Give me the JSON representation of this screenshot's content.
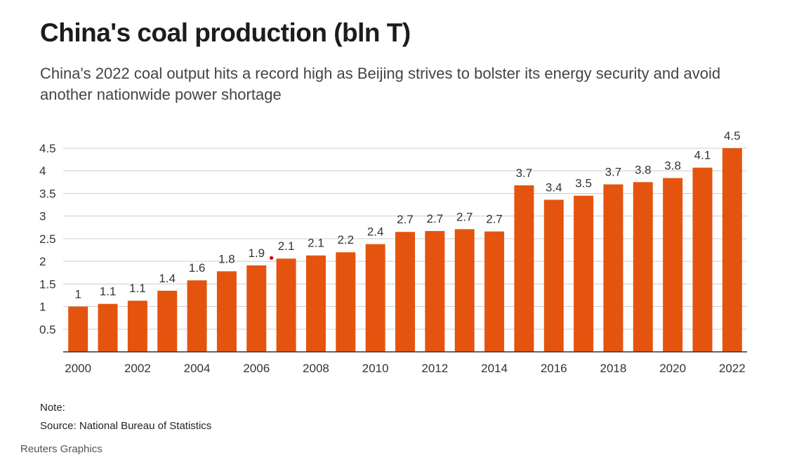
{
  "header": {
    "title": "China's coal production (bln T)",
    "subtitle": "China's 2022 coal output hits a record high as Beijing strives to bolster its energy security and avoid another nationwide power shortage"
  },
  "footer": {
    "note": "Note:",
    "source": "Source: National Bureau of Statistics",
    "credit": "Reuters Graphics"
  },
  "colors": {
    "bar": "#e5540f",
    "grid": "#cccccc",
    "axis": "#333333",
    "tick_text": "#333333",
    "marker": "#d0021b"
  },
  "chart_data": {
    "type": "bar",
    "title": "China's coal production (bln T)",
    "xlabel": "",
    "ylabel": "",
    "ylim": [
      0,
      4.5
    ],
    "y_ticks": [
      "0.5",
      "1",
      "1.5",
      "2",
      "2.5",
      "3",
      "3.5",
      "4",
      "4.5"
    ],
    "x_tick_labels": [
      "2000",
      "2002",
      "2004",
      "2006",
      "2008",
      "2010",
      "2012",
      "2014",
      "2016",
      "2018",
      "2020",
      "2022"
    ],
    "grid": true,
    "categories": [
      "2000",
      "2001",
      "2002",
      "2003",
      "2004",
      "2005",
      "2006",
      "2007",
      "2008",
      "2009",
      "2010",
      "2011",
      "2012",
      "2013",
      "2014",
      "2015",
      "2016",
      "2017",
      "2018",
      "2019",
      "2020",
      "2021",
      "2022"
    ],
    "values": [
      1.0,
      1.06,
      1.13,
      1.35,
      1.58,
      1.78,
      1.91,
      2.06,
      2.13,
      2.2,
      2.38,
      2.65,
      2.67,
      2.71,
      2.66,
      3.68,
      3.36,
      3.45,
      3.7,
      3.75,
      3.84,
      4.07,
      4.5
    ],
    "data_labels": [
      "1",
      "1.1",
      "1.1",
      "1.4",
      "1.6",
      "1.8",
      "1.9",
      "2.1",
      "2.1",
      "2.2",
      "2.4",
      "2.7",
      "2.7",
      "2.7",
      "2.7",
      "3.7",
      "3.4",
      "3.5",
      "3.7",
      "3.8",
      "3.8",
      "4.1",
      "4.5"
    ]
  }
}
